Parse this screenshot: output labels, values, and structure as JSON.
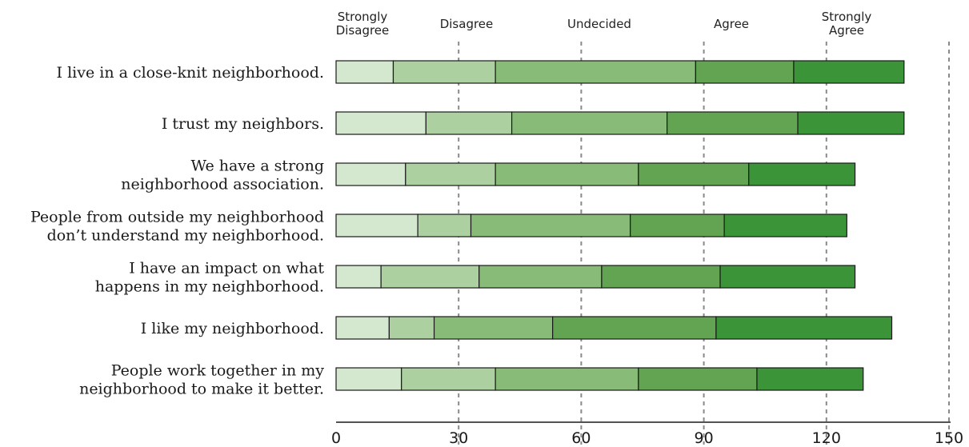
{
  "chart_data": {
    "type": "bar",
    "orientation": "horizontal",
    "stacked": true,
    "title": "",
    "xlabel": "",
    "ylabel": "",
    "xlim": [
      0,
      150
    ],
    "xticks": [
      0,
      30,
      60,
      90,
      120,
      150
    ],
    "grid": true,
    "legend_placement": "top",
    "categories": [
      [
        "I live in a close-knit neighborhood."
      ],
      [
        "I trust my neighbors."
      ],
      [
        "We have a strong",
        "neighborhood association."
      ],
      [
        "People from outside my neighborhood",
        "don’t understand my neighborhood."
      ],
      [
        "I have an impact on what",
        "happens in my neighborhood."
      ],
      [
        "I like my neighborhood."
      ],
      [
        "People work together in my",
        "neighborhood to make it better."
      ]
    ],
    "series": [
      {
        "name": [
          "Strongly",
          "Disagree"
        ],
        "color": "#d4e8d0",
        "values": [
          14,
          22,
          17,
          20,
          11,
          13,
          16
        ]
      },
      {
        "name": [
          "Disagree"
        ],
        "color": "#acd0a0",
        "values": [
          25,
          21,
          22,
          13,
          24,
          11,
          23
        ]
      },
      {
        "name": [
          "Undecided"
        ],
        "color": "#88bb78",
        "values": [
          49,
          38,
          35,
          39,
          30,
          29,
          35
        ]
      },
      {
        "name": [
          "Agree"
        ],
        "color": "#62a452",
        "values": [
          24,
          32,
          27,
          23,
          29,
          40,
          29
        ]
      },
      {
        "name": [
          "Strongly",
          "Agree"
        ],
        "color": "#3b9438",
        "values": [
          27,
          26,
          26,
          30,
          33,
          43,
          26
        ]
      }
    ]
  }
}
